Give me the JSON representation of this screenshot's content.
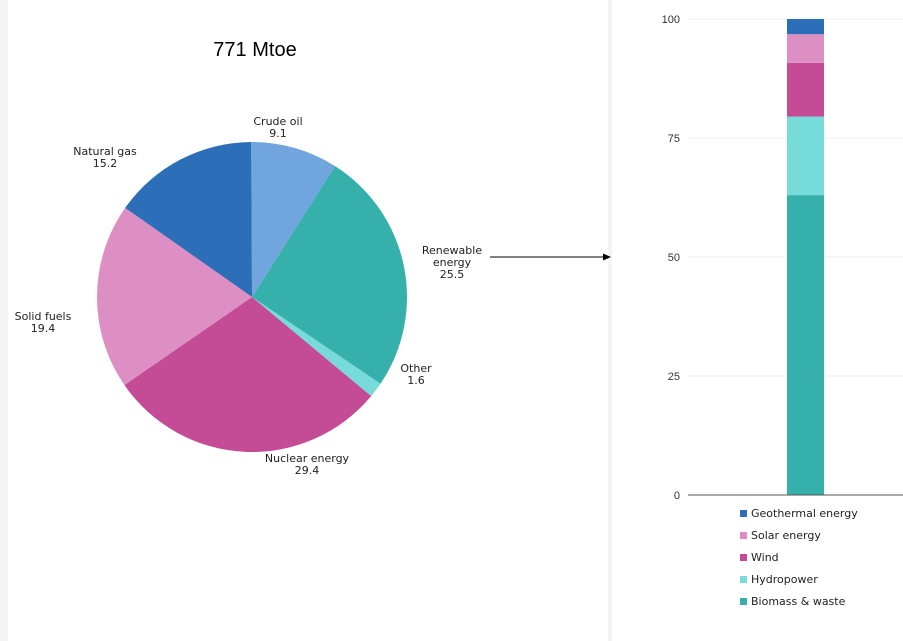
{
  "chart_data": [
    {
      "type": "pie",
      "title": "771 Mtoe",
      "slices": [
        {
          "label": "Crude oil",
          "value": 9.1,
          "color": "#71a5de"
        },
        {
          "label": "Renewable energy",
          "value": 25.5,
          "color": "#35b0ab"
        },
        {
          "label": "Other",
          "value": 1.6,
          "color": "#77dbd9"
        },
        {
          "label": "Nuclear energy",
          "value": 29.4,
          "color": "#c44b96"
        },
        {
          "label": "Solid fuels",
          "value": 19.4,
          "color": "#dd8fc4"
        },
        {
          "label": "Natural gas",
          "value": 15.2,
          "color": "#2c6fb8"
        }
      ]
    },
    {
      "type": "bar",
      "stacked": true,
      "ylim": [
        0,
        100
      ],
      "yticks": [
        0,
        25,
        50,
        75,
        100
      ],
      "grid": true,
      "legend": "bottom",
      "series": [
        {
          "name": "Biomass & waste",
          "value": 63.0,
          "color": "#35b0ab"
        },
        {
          "name": "Hydropower",
          "value": 16.5,
          "color": "#77dbd9"
        },
        {
          "name": "Wind",
          "value": 11.3,
          "color": "#c44b96"
        },
        {
          "name": "Solar energy",
          "value": 6.0,
          "color": "#dd8fc4"
        },
        {
          "name": "Geothermal energy",
          "value": 3.2,
          "color": "#2c6fb8"
        }
      ]
    }
  ]
}
